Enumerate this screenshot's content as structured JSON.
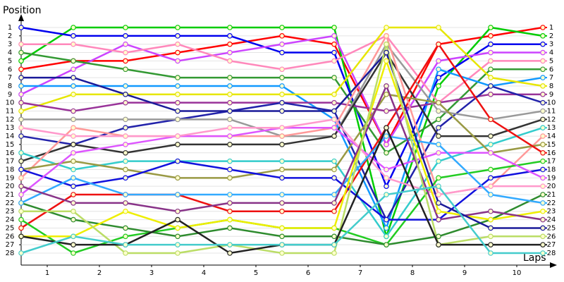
{
  "chart_data": {
    "type": "line",
    "y_axis_label": "Position",
    "x_axis_label": "Laps",
    "x": [
      0,
      1,
      2,
      3,
      4,
      5,
      6,
      7,
      8,
      9,
      10
    ],
    "xlim": [
      0,
      10
    ],
    "xticks": [
      {
        "value": 0.5,
        "label": "1"
      },
      {
        "value": 1.5,
        "label": "2"
      },
      {
        "value": 2.5,
        "label": "3"
      },
      {
        "value": 3.5,
        "label": "4"
      },
      {
        "value": 4.5,
        "label": "5"
      },
      {
        "value": 5.5,
        "label": "6"
      },
      {
        "value": 6.5,
        "label": "7"
      },
      {
        "value": 7.5,
        "label": "8"
      },
      {
        "value": 8.5,
        "label": "9"
      },
      {
        "value": 9.5,
        "label": "10"
      }
    ],
    "ylim": [
      1,
      28
    ],
    "y_reversed": true,
    "yticks": [
      1,
      2,
      3,
      4,
      5,
      6,
      7,
      8,
      9,
      10,
      11,
      12,
      13,
      14,
      15,
      16,
      17,
      18,
      19,
      20,
      21,
      22,
      23,
      24,
      25,
      26,
      27,
      28
    ],
    "grid": true,
    "series": [
      {
        "color": "#ff0000",
        "values": [
          6,
          5,
          5,
          4,
          3,
          2,
          3,
          15,
          3,
          2,
          1
        ]
      },
      {
        "color": "#00cc00",
        "values": [
          5,
          1,
          1,
          1,
          1,
          1,
          1,
          26,
          8,
          1,
          2
        ]
      },
      {
        "color": "#0000ee",
        "values": [
          1,
          2,
          2,
          2,
          2,
          4,
          4,
          20,
          7,
          3,
          3
        ]
      },
      {
        "color": "#cc44ff",
        "values": [
          9,
          6,
          3,
          5,
          4,
          3,
          2,
          15,
          5,
          4,
          4
        ]
      },
      {
        "color": "#ff88bb",
        "values": [
          3,
          3,
          4,
          3,
          5,
          6,
          5,
          2,
          10,
          5,
          5
        ]
      },
      {
        "color": "#339933",
        "values": [
          4,
          5,
          6,
          7,
          7,
          7,
          7,
          16,
          12,
          6,
          6
        ]
      },
      {
        "color": "#1199ff",
        "values": [
          8,
          8,
          8,
          8,
          8,
          8,
          12,
          25,
          6,
          8,
          7
        ]
      },
      {
        "color": "#e6e600",
        "values": [
          11,
          9,
          9,
          9,
          9,
          9,
          9,
          1,
          1,
          7,
          8
        ]
      },
      {
        "color": "#993399",
        "values": [
          10,
          11,
          10,
          10,
          10,
          10,
          10,
          11,
          10,
          9,
          9
        ]
      },
      {
        "color": "#2222aa",
        "values": [
          14,
          15,
          13,
          12,
          11,
          10,
          11,
          24,
          13,
          8,
          10
        ]
      },
      {
        "color": "#999999",
        "values": [
          12,
          12,
          12,
          12,
          12,
          14,
          14,
          3,
          11,
          12,
          11
        ]
      },
      {
        "color": "#333333",
        "values": [
          17,
          15,
          16,
          15,
          15,
          15,
          14,
          4,
          14,
          14,
          12
        ]
      },
      {
        "color": "#33cccc",
        "values": [
          16,
          18,
          17,
          17,
          17,
          17,
          17,
          26,
          17,
          15,
          13
        ]
      },
      {
        "color": "#ff9999",
        "values": [
          19,
          13,
          14,
          14,
          14,
          14,
          13,
          2,
          21,
          20,
          14
        ]
      },
      {
        "color": "#999944",
        "values": [
          18,
          17,
          18,
          19,
          19,
          18,
          18,
          9,
          10,
          16,
          15
        ]
      },
      {
        "color": "#ee1111",
        "values": [
          25,
          21,
          21,
          21,
          23,
          23,
          23,
          13,
          3,
          12,
          16
        ]
      },
      {
        "color": "#22cc22",
        "values": [
          24,
          28,
          26,
          25,
          24,
          25,
          25,
          27,
          19,
          18,
          17
        ]
      },
      {
        "color": "#1111dd",
        "values": [
          18,
          20,
          19,
          17,
          18,
          19,
          19,
          24,
          24,
          19,
          18
        ]
      },
      {
        "color": "#dd55ff",
        "values": [
          21,
          16,
          15,
          14,
          14,
          13,
          13,
          18,
          16,
          16,
          19
        ]
      },
      {
        "color": "#ff99cc",
        "values": [
          13,
          14,
          14,
          14,
          13,
          13,
          12,
          19,
          21,
          20,
          20
        ]
      },
      {
        "color": "#2e8b2e",
        "values": [
          22,
          24,
          25,
          26,
          25,
          26,
          26,
          27,
          26,
          24,
          21
        ]
      },
      {
        "color": "#33aaff",
        "values": [
          22,
          19,
          21,
          21,
          21,
          21,
          21,
          14,
          15,
          21,
          22
        ]
      },
      {
        "color": "#eeee00",
        "values": [
          26,
          26,
          23,
          25,
          24,
          25,
          25,
          5,
          23,
          24,
          23
        ]
      },
      {
        "color": "#883388",
        "values": [
          20,
          22,
          22,
          23,
          22,
          22,
          22,
          8,
          24,
          23,
          24
        ]
      },
      {
        "color": "#1a1a99",
        "values": [
          7,
          7,
          9,
          11,
          11,
          11,
          11,
          4,
          22,
          25,
          25
        ]
      },
      {
        "color": "#bbdd66",
        "values": [
          23,
          23,
          28,
          28,
          27,
          28,
          28,
          3,
          27,
          26,
          26
        ]
      },
      {
        "color": "#222222",
        "values": [
          26,
          27,
          27,
          24,
          28,
          27,
          27,
          13,
          27,
          27,
          27
        ]
      },
      {
        "color": "#44cccc",
        "values": [
          28,
          26,
          27,
          27,
          27,
          27,
          27,
          21,
          20,
          28,
          28
        ]
      }
    ]
  }
}
